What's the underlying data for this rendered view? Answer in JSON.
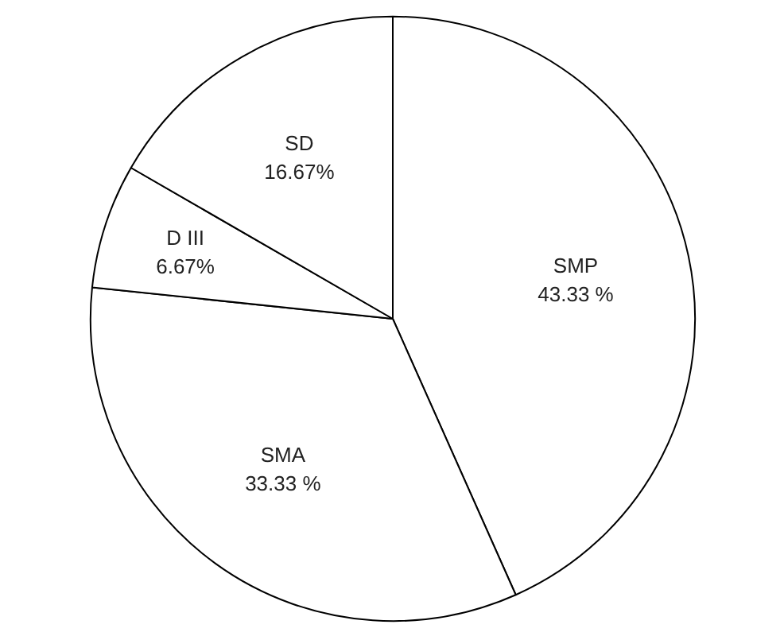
{
  "chart_data": {
    "type": "pie",
    "categories": [
      "SMP",
      "SMA",
      "D III",
      "SD"
    ],
    "values": [
      43.33,
      33.33,
      6.67,
      16.67
    ],
    "colors": [
      "#ffffff",
      "#ffffff",
      "#ffffff",
      "#ffffff"
    ],
    "value_labels": [
      "43.33 %",
      "33.33 %",
      "6.67%",
      "16.67%"
    ]
  }
}
